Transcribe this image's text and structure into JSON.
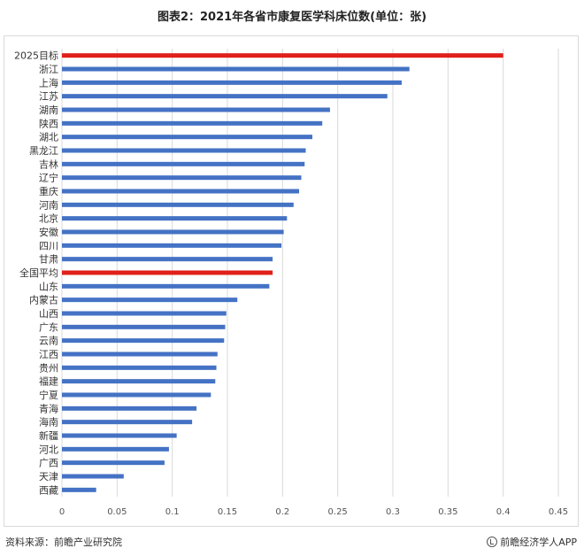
{
  "title": "图表2：2021年各省市康复医学科床位数(单位：张)",
  "footer": {
    "source": "资料来源：前瞻产业研究院",
    "brand": "前瞻经济学人APP",
    "brand_icon": "qianzhan-logo-icon"
  },
  "colors": {
    "bar": "#4472c4",
    "highlight": "#e0201b",
    "grid": "#d9d9d9"
  },
  "chart_data": {
    "type": "bar",
    "orientation": "horizontal",
    "categories": [
      "2025目标",
      "浙江",
      "上海",
      "江苏",
      "湖南",
      "陕西",
      "湖北",
      "黑龙江",
      "吉林",
      "辽宁",
      "重庆",
      "河南",
      "北京",
      "安徽",
      "四川",
      "甘肃",
      "全国平均",
      "山东",
      "内蒙古",
      "山西",
      "广东",
      "云南",
      "江西",
      "贵州",
      "福建",
      "宁夏",
      "青海",
      "海南",
      "新疆",
      "河北",
      "广西",
      "天津",
      "西藏"
    ],
    "values": [
      0.4,
      0.315,
      0.308,
      0.295,
      0.243,
      0.236,
      0.227,
      0.221,
      0.22,
      0.217,
      0.215,
      0.21,
      0.204,
      0.201,
      0.199,
      0.191,
      0.191,
      0.188,
      0.159,
      0.149,
      0.148,
      0.147,
      0.141,
      0.14,
      0.139,
      0.135,
      0.122,
      0.118,
      0.104,
      0.097,
      0.093,
      0.056,
      0.031
    ],
    "highlight": [
      "2025目标",
      "全国平均"
    ],
    "x_ticks": [
      "0",
      "0.05",
      "0.1",
      "0.15",
      "0.2",
      "0.25",
      "0.3",
      "0.35",
      "0.4",
      "0.45"
    ],
    "xlim": [
      0,
      0.45
    ],
    "xlabel": "",
    "ylabel": "",
    "grid": "vertical",
    "legend": "none"
  }
}
